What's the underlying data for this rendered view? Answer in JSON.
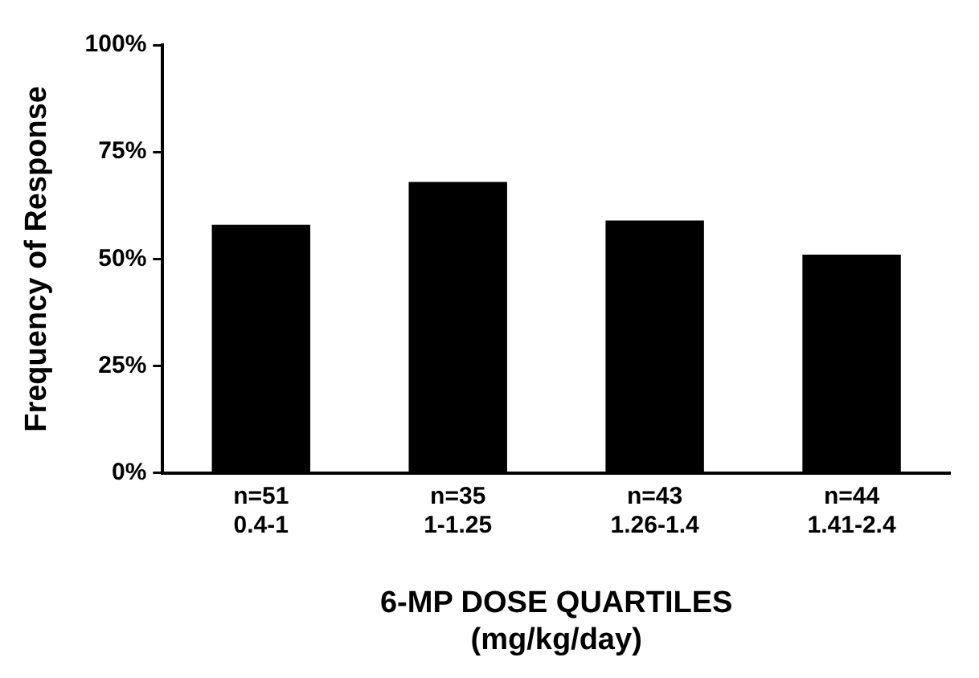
{
  "chart_data": {
    "type": "bar",
    "ylabel": "Frequency of Response",
    "xlabel": "6-MP DOSE QUARTILES\n(mg/kg/day)",
    "categories": [
      "n=51\n0.4-1",
      "n=35\n1-1.25",
      "n=43\n1.26-1.4",
      "n=44\n1.41-2.4"
    ],
    "values": [
      58,
      68,
      59,
      51
    ],
    "color": "#000000",
    "ylim": [
      0,
      100
    ],
    "yticks": [
      {
        "value": 0,
        "label": "0%"
      },
      {
        "value": 25,
        "label": "25%"
      },
      {
        "value": 50,
        "label": "50%"
      },
      {
        "value": 75,
        "label": "75%"
      },
      {
        "value": 100,
        "label": "100%"
      }
    ],
    "grid": false,
    "legend": false
  }
}
